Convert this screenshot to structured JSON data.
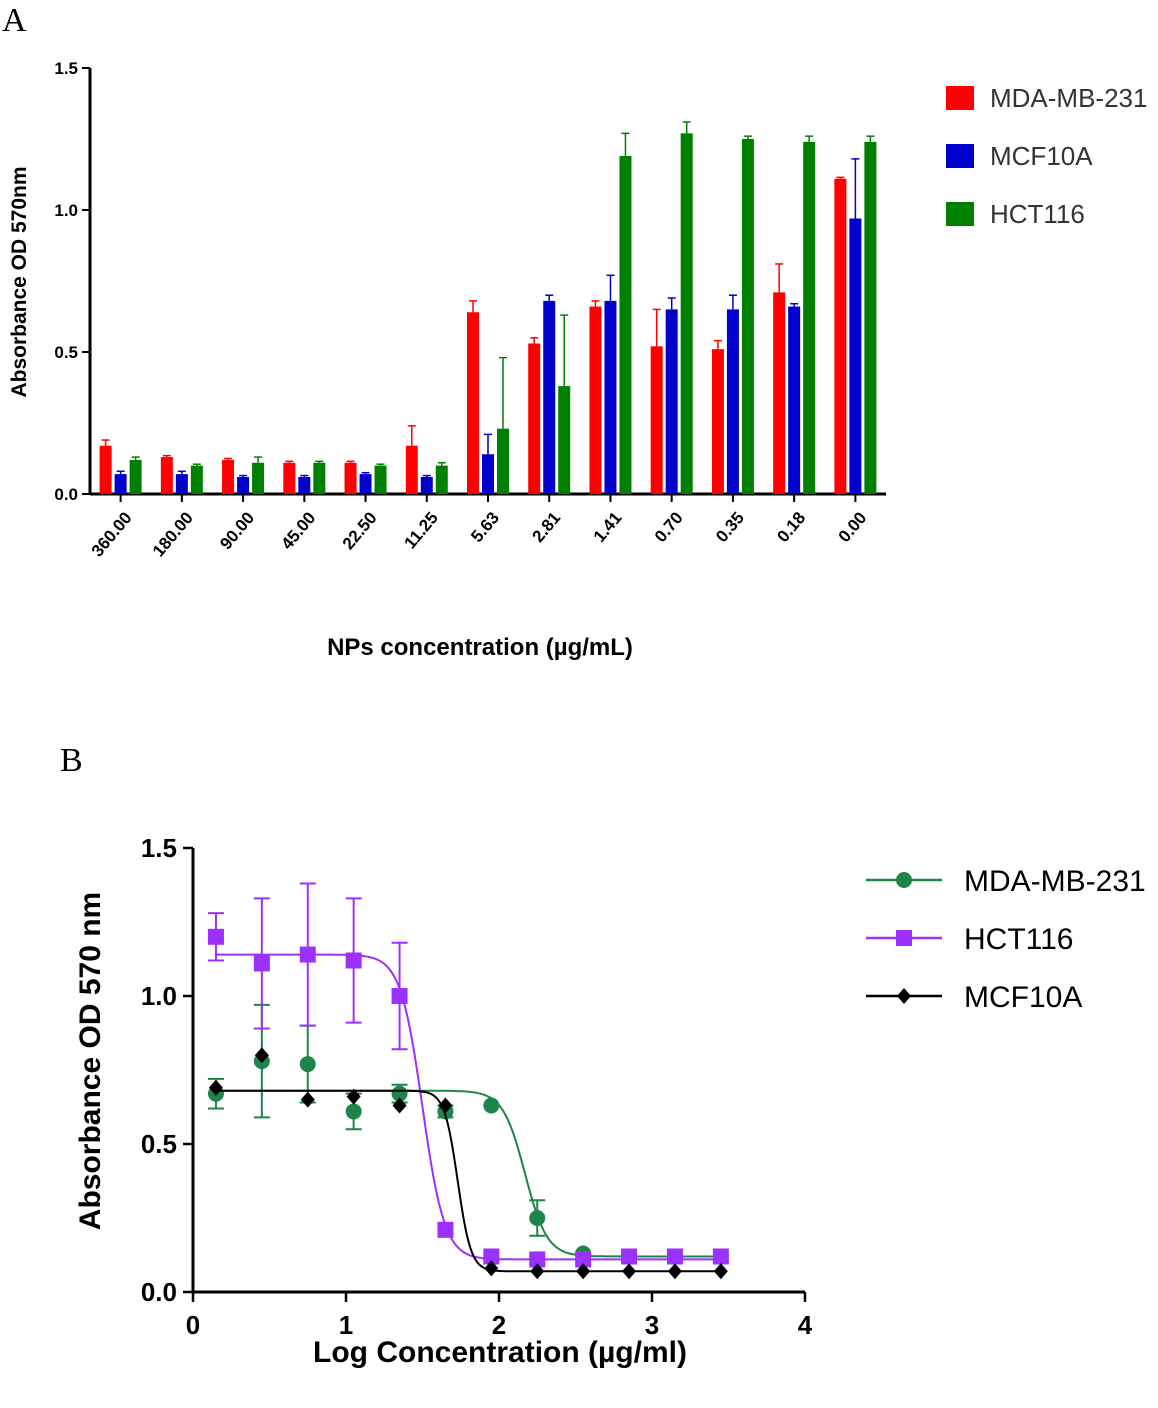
{
  "panels": {
    "a": "A",
    "b": "B"
  },
  "chart_data": [
    {
      "type": "bar",
      "title": "",
      "xlabel": "NPs concentration (µg/mL)",
      "ylabel": "Absorbance OD 570nm",
      "ylim": [
        0,
        1.5
      ],
      "yticks": [
        "0.0",
        "0.5",
        "1.0",
        "1.5"
      ],
      "categories": [
        "360.00",
        "180.00",
        "90.00",
        "45.00",
        "22.50",
        "11.25",
        "5.63",
        "2.81",
        "1.41",
        "0.70",
        "0.35",
        "0.18",
        "0.00"
      ],
      "legend_position": "top-right",
      "series": [
        {
          "name": "MDA-MB-231",
          "color": "#ff0000",
          "values": [
            0.17,
            0.13,
            0.12,
            0.11,
            0.11,
            0.17,
            0.64,
            0.53,
            0.66,
            0.52,
            0.51,
            0.71,
            1.11
          ],
          "errors": [
            0.02,
            0.005,
            0.005,
            0.005,
            0.005,
            0.07,
            0.04,
            0.02,
            0.02,
            0.13,
            0.03,
            0.1,
            0.005
          ]
        },
        {
          "name": "MCF10A",
          "color": "#0000cc",
          "values": [
            0.07,
            0.07,
            0.06,
            0.06,
            0.07,
            0.06,
            0.14,
            0.68,
            0.68,
            0.65,
            0.65,
            0.66,
            0.97
          ],
          "errors": [
            0.01,
            0.01,
            0.005,
            0.005,
            0.005,
            0.005,
            0.07,
            0.02,
            0.09,
            0.04,
            0.05,
            0.01,
            0.21
          ]
        },
        {
          "name": "HCT116",
          "color": "#008000",
          "values": [
            0.12,
            0.1,
            0.11,
            0.11,
            0.1,
            0.1,
            0.23,
            0.38,
            1.19,
            1.27,
            1.25,
            1.24,
            1.24
          ],
          "errors": [
            0.01,
            0.005,
            0.02,
            0.005,
            0.005,
            0.01,
            0.25,
            0.25,
            0.08,
            0.04,
            0.01,
            0.02,
            0.02
          ]
        }
      ]
    },
    {
      "type": "scatter",
      "title": "",
      "xlabel": "Log Concentration (µg/ml)",
      "ylabel": "Absorbance OD 570 nm",
      "xlim": [
        0,
        4
      ],
      "ylim": [
        0,
        1.5
      ],
      "xticks": [
        "0",
        "1",
        "2",
        "3",
        "4"
      ],
      "yticks": [
        "0.0",
        "0.5",
        "1.0",
        "1.5"
      ],
      "legend_position": "top-right",
      "series": [
        {
          "name": "MDA-MB-231",
          "color": "#1e8449",
          "marker": "circle",
          "x": [
            0.15,
            0.45,
            0.75,
            1.05,
            1.35,
            1.65,
            1.95,
            2.25,
            2.55,
            2.85,
            3.15,
            3.45
          ],
          "y": [
            0.67,
            0.78,
            0.77,
            0.61,
            0.67,
            0.61,
            0.63,
            0.25,
            0.13,
            0.12,
            0.12,
            0.12
          ],
          "err": [
            0.05,
            0.19,
            0.13,
            0.06,
            0.03,
            0.02,
            0.01,
            0.06,
            0.01,
            0.01,
            0.01,
            0.01
          ],
          "fit": {
            "top": 0.68,
            "bottom": 0.12,
            "logIC50": 2.17,
            "hill": -6
          }
        },
        {
          "name": "HCT116",
          "color": "#9b30ff",
          "marker": "square",
          "x": [
            0.15,
            0.45,
            0.75,
            1.05,
            1.35,
            1.65,
            1.95,
            2.25,
            2.55,
            2.85,
            3.15,
            3.45
          ],
          "y": [
            1.2,
            1.11,
            1.14,
            1.12,
            1.0,
            0.21,
            0.12,
            0.11,
            0.11,
            0.12,
            0.12,
            0.12
          ],
          "err": [
            0.08,
            0.22,
            0.24,
            0.21,
            0.18,
            0.01,
            0.01,
            0.01,
            0.01,
            0.01,
            0.01,
            0.01
          ],
          "fit": {
            "top": 1.14,
            "bottom": 0.11,
            "logIC50": 1.5,
            "hill": -6
          }
        },
        {
          "name": "MCF10A",
          "color": "#000000",
          "marker": "diamond",
          "x": [
            0.15,
            0.45,
            0.75,
            1.05,
            1.35,
            1.65,
            1.95,
            2.25,
            2.55,
            2.85,
            3.15,
            3.45
          ],
          "y": [
            0.69,
            0.8,
            0.65,
            0.66,
            0.63,
            0.63,
            0.08,
            0.07,
            0.07,
            0.07,
            0.07,
            0.07
          ],
          "err": [
            0.01,
            0.01,
            0.01,
            0.01,
            0.01,
            0.01,
            0.01,
            0.01,
            0.01,
            0.01,
            0.01,
            0.01
          ],
          "fit": {
            "top": 0.68,
            "bottom": 0.07,
            "logIC50": 1.73,
            "hill": -10
          }
        }
      ]
    }
  ]
}
